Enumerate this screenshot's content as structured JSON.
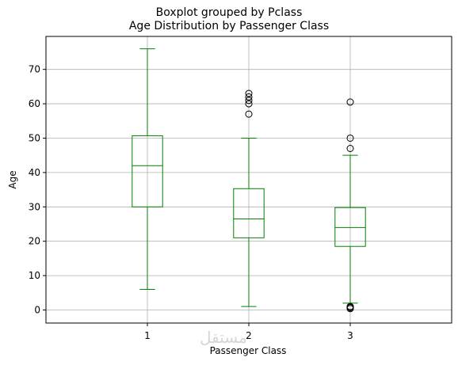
{
  "figure": {
    "suptitle": "Boxplot grouped by Pclass",
    "watermark": "مستقل"
  },
  "chart_data": {
    "type": "box",
    "title": "Age Distribution by Passenger Class",
    "xlabel": "Passenger Class",
    "ylabel": "Age",
    "categories": [
      "1",
      "2",
      "3"
    ],
    "ylim": [
      -3.8,
      79.6
    ],
    "yticks": [
      0,
      10,
      20,
      30,
      40,
      50,
      60,
      70
    ],
    "grid": true,
    "box_color": "#008000",
    "outlier_color": "#000000",
    "series": [
      {
        "category": "1",
        "whislo": 6,
        "q1": 30,
        "med": 42,
        "q3": 50.7,
        "whishi": 76,
        "fliers": []
      },
      {
        "category": "2",
        "whislo": 1,
        "q1": 21,
        "med": 26.5,
        "q3": 35.3,
        "whishi": 50,
        "fliers": [
          57,
          60,
          61,
          62,
          63
        ]
      },
      {
        "category": "3",
        "whislo": 2,
        "q1": 18.5,
        "med": 24,
        "q3": 29.8,
        "whishi": 45,
        "fliers": [
          0.4,
          0.7,
          0.9,
          1,
          47,
          50,
          60.5
        ]
      }
    ]
  }
}
